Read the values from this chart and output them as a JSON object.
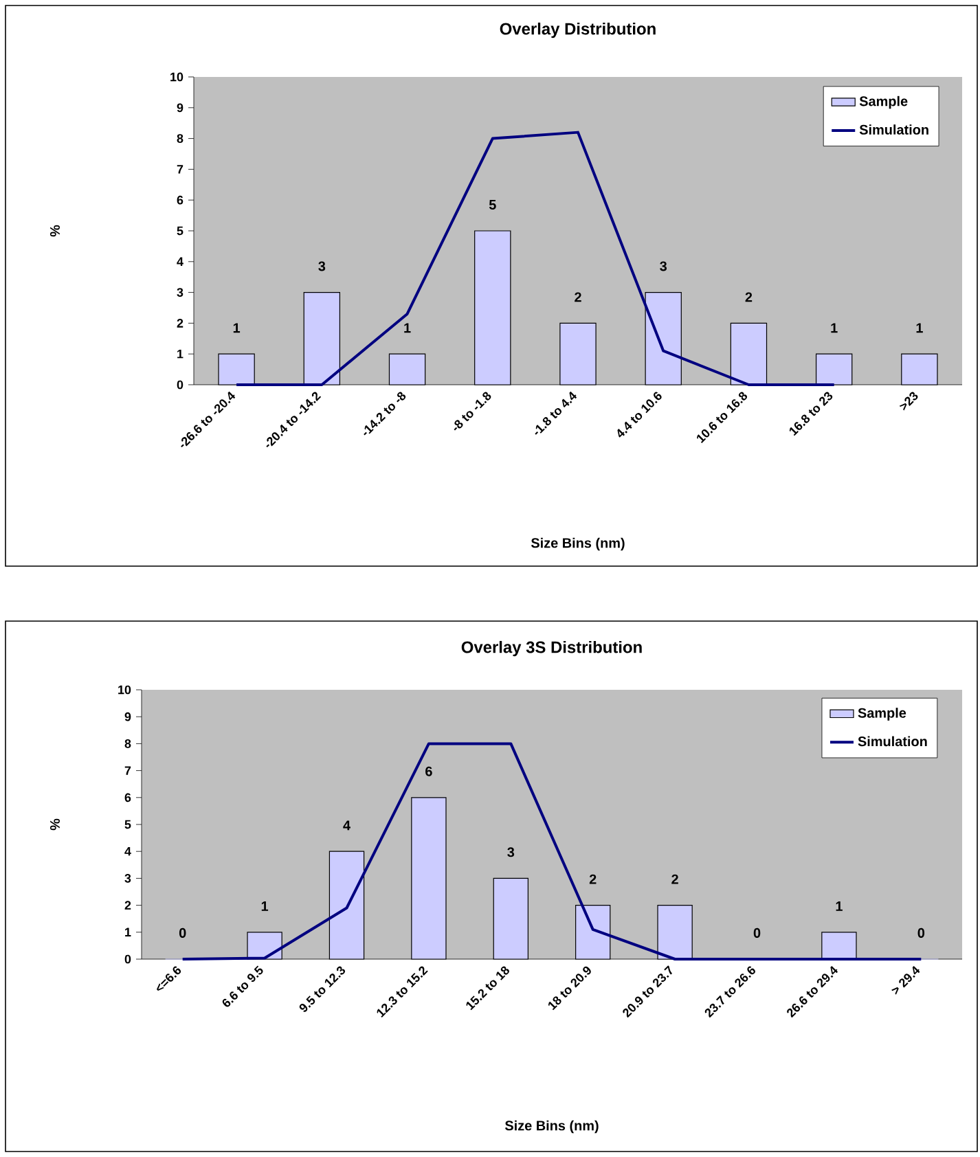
{
  "chart_data": [
    {
      "type": "bar",
      "title": "Overlay Distribution",
      "xlabel": "Size Bins (nm)",
      "ylabel": "%",
      "categories": [
        "-26.6 to -20.4",
        "-20.4 to -14.2",
        "-14.2 to -8",
        "-8 to -1.8",
        "-1.8 to 4.4",
        "4.4 to 10.6",
        "10.6 to 16.8",
        "16.8 to 23",
        ">23"
      ],
      "series": [
        {
          "name": "Sample",
          "color": "#ccccff",
          "values": [
            1,
            3,
            1,
            5,
            2,
            3,
            2,
            1,
            1
          ],
          "value_labels": [
            "1",
            "3",
            "1",
            "5",
            "2",
            "3",
            "2",
            "1",
            "1"
          ]
        },
        {
          "name": "Simulation",
          "type": "line",
          "color": "#000080",
          "values": [
            0,
            0,
            2.3,
            8.0,
            8.2,
            1.1,
            0,
            0,
            null
          ]
        }
      ],
      "ylim": [
        0,
        10
      ],
      "yticks": [
        0,
        1,
        2,
        3,
        4,
        5,
        6,
        7,
        8,
        9,
        10
      ],
      "legend": "top right"
    },
    {
      "type": "bar",
      "title": "Overlay 3S Distribution",
      "xlabel": "Size Bins (nm)",
      "ylabel": "%",
      "categories": [
        "<=6.6",
        "6.6 to 9.5",
        "9.5 to 12.3",
        "12.3 to 15.2",
        "15.2 to 18",
        "18 to 20.9",
        "20.9 to 23.7",
        "23.7 to 26.6",
        "26.6 to 29.4",
        "> 29.4"
      ],
      "series": [
        {
          "name": "Sample",
          "color": "#ccccff",
          "values": [
            0,
            1,
            4,
            6,
            3,
            2,
            2,
            0,
            1,
            0
          ],
          "value_labels": [
            "0",
            "1",
            "4",
            "6",
            "3",
            "2",
            "2",
            "0",
            "1",
            "0"
          ]
        },
        {
          "name": "Simulation",
          "type": "line",
          "color": "#000080",
          "values": [
            0,
            0.04,
            1.9,
            8.0,
            8.0,
            1.1,
            0,
            0,
            0,
            0
          ]
        }
      ],
      "ylim": [
        0,
        10
      ],
      "yticks": [
        0,
        1,
        2,
        3,
        4,
        5,
        6,
        7,
        8,
        9,
        10
      ],
      "legend": "top right"
    }
  ]
}
